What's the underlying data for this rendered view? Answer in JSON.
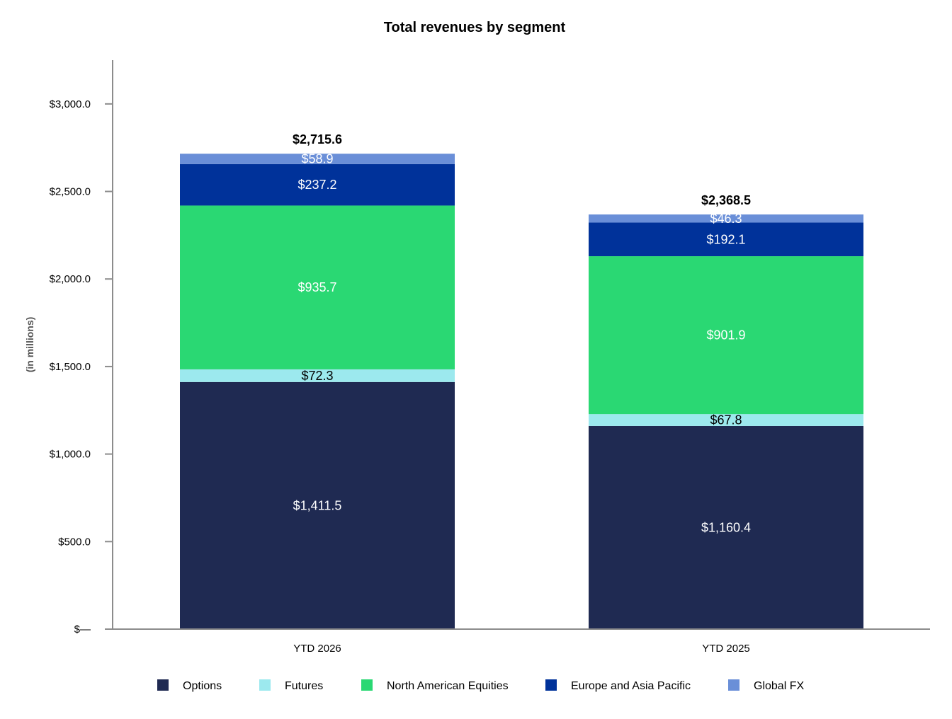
{
  "chart_data": {
    "type": "bar",
    "stacked": true,
    "title": "Total revenues by segment",
    "ylabel": "(in millions)",
    "xlabel": "",
    "categories": [
      "YTD 2026",
      "YTD 2025"
    ],
    "ylim": [
      0,
      3250
    ],
    "yticks": [
      0,
      500,
      1000,
      1500,
      2000,
      2500,
      3000
    ],
    "ytick_labels": [
      "$—",
      "$500.0",
      "$1,000.0",
      "$1,500.0",
      "$2,000.0",
      "$2,500.0",
      "$3,000.0"
    ],
    "series": [
      {
        "name": "Options",
        "color": "#1f2a52",
        "label_color": "#ffffff",
        "values": [
          1411.5,
          1160.4
        ],
        "labels": [
          "$1,411.5",
          "$1,160.4"
        ]
      },
      {
        "name": "Futures",
        "color": "#9ce9ee",
        "label_color": "#000000",
        "values": [
          72.3,
          67.8
        ],
        "labels": [
          "$72.3",
          "$67.8"
        ]
      },
      {
        "name": "North American Equities",
        "color": "#2ad873",
        "label_color": "#ffffff",
        "values": [
          935.7,
          901.9
        ],
        "labels": [
          "$935.7",
          "$901.9"
        ]
      },
      {
        "name": "Europe and Asia Pacific",
        "color": "#00329a",
        "label_color": "#ffffff",
        "values": [
          237.2,
          192.1
        ],
        "labels": [
          "$237.2",
          "$192.1"
        ]
      },
      {
        "name": "Global FX",
        "color": "#6a8fd8",
        "label_color": "#ffffff",
        "values": [
          58.9,
          46.3
        ],
        "labels": [
          "$58.9",
          "$46.3"
        ]
      }
    ],
    "totals": [
      2715.6,
      2368.5
    ],
    "total_labels": [
      "$2,715.6",
      "$2,368.5"
    ],
    "grid": false,
    "legend_position": "bottom"
  }
}
